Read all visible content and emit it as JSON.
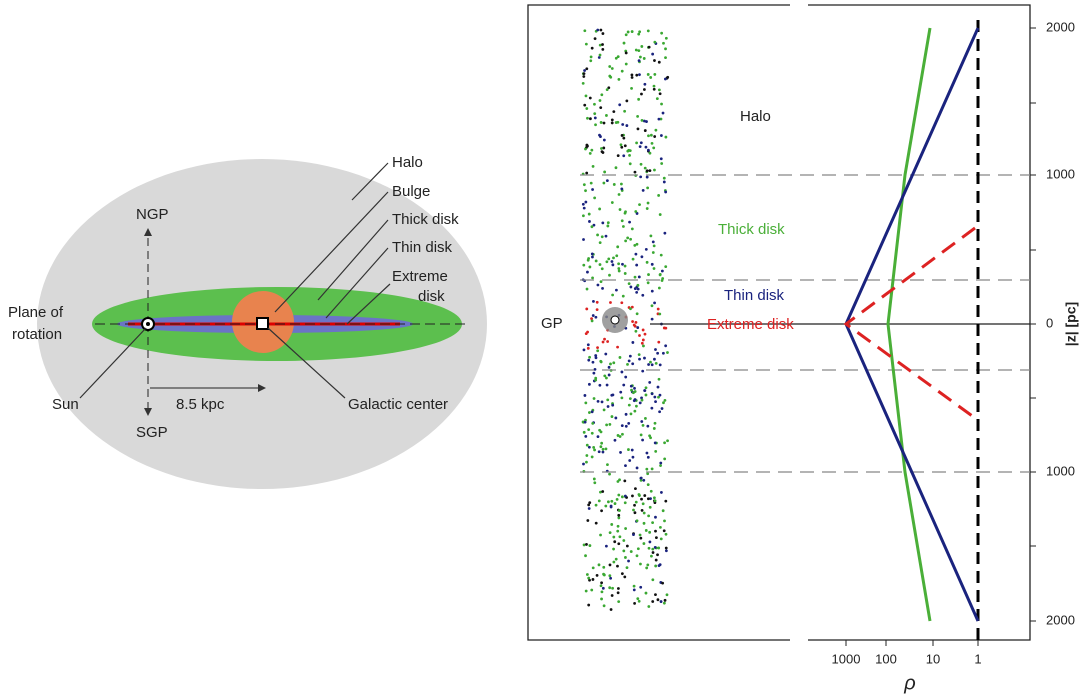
{
  "left": {
    "halo": "Halo",
    "bulge": "Bulge",
    "thick_disk": "Thick disk",
    "thin_disk": "Thin disk",
    "extreme_disk": [
      "Extreme",
      "disk"
    ],
    "ngp": "NGP",
    "sgp": "SGP",
    "plane": [
      "Plane of",
      "rotation"
    ],
    "sun": "Sun",
    "distance": "8.5 kpc",
    "galactic_center": "Galactic center"
  },
  "right": {
    "halo": "Halo",
    "thick_disk": "Thick disk",
    "thin_disk": "Thin disk",
    "extreme_disk": "Extreme disk",
    "gp": "GP",
    "z_ticks": [
      2000,
      1000,
      0,
      1000,
      2000
    ],
    "z_label": "|z|  [pc]",
    "rho_ticks": [
      1000,
      100,
      10,
      1
    ],
    "rho_label": "ρ"
  }
}
